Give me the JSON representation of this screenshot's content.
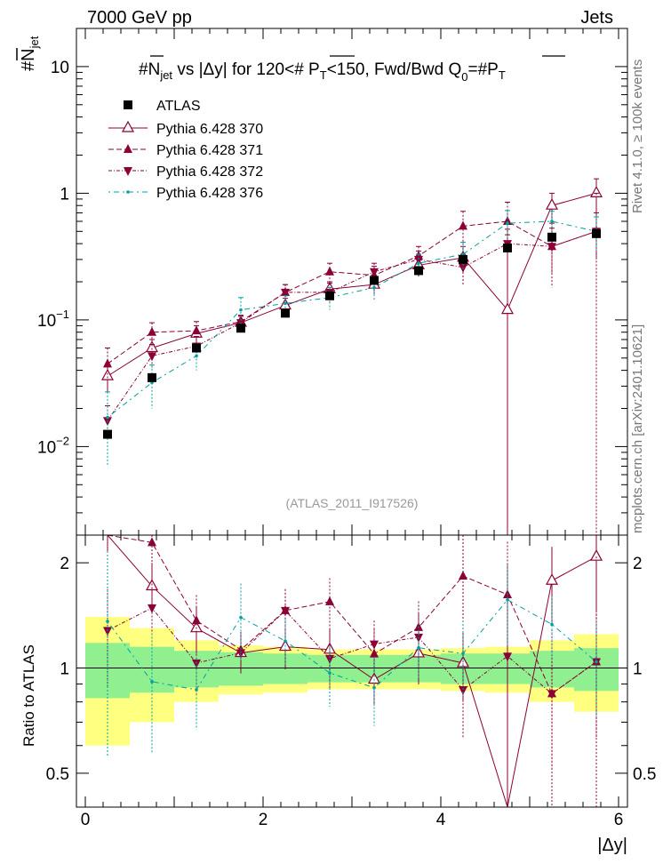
{
  "header": {
    "left": "7000 GeV pp",
    "right": "Jets"
  },
  "side_labels": {
    "rivet": "Rivet 4.1.0, ≥ 100k events",
    "mcplots": "mcplots.cern.ch [arXiv:2401.10621]"
  },
  "title": {
    "p1": "#",
    "p2": "N",
    "p3": "jet",
    "p4": " vs |Δy| for 120<# ",
    "p5": "P",
    "p6": "T",
    "p7": "<150, Fwd/Bwd Q",
    "p8": "0",
    "p9": "=#",
    "p10": "P",
    "p11": "T"
  },
  "watermark": "(ATLAS_2011_I917526)",
  "colors": {
    "data": "#000000",
    "mc": "#8b0036",
    "mc376": "#00a0a0",
    "band_inner": "#90f090",
    "band_outer": "#ffff80",
    "frame": "#000000"
  },
  "chart_data": {
    "type": "scatter",
    "xlabel": "|Δy|",
    "ylabel": {
      "main": "#",
      "bar": "N",
      "sub": "jet"
    },
    "ratio_ylabel": "Ratio to ATLAS",
    "xlim": [
      -0.1,
      6.1
    ],
    "ylim": [
      0.002,
      20
    ],
    "ratio_ylim": [
      0.4,
      2.4
    ],
    "x_ticks": [
      {
        "v": 0,
        "label": "0"
      },
      {
        "v": 2,
        "label": "2"
      },
      {
        "v": 4,
        "label": "4"
      },
      {
        "v": 6,
        "label": "6"
      }
    ],
    "y_ticks": [
      {
        "v": 0.01,
        "base": "10",
        "exp": "−2"
      },
      {
        "v": 0.1,
        "base": "10",
        "exp": "−1"
      },
      {
        "v": 1,
        "base": "1",
        "exp": ""
      },
      {
        "v": 10,
        "base": "10",
        "exp": ""
      }
    ],
    "ratio_ticks": [
      {
        "v": 0.5,
        "label": "0.5"
      },
      {
        "v": 1,
        "label": "1"
      },
      {
        "v": 2,
        "label": "2"
      }
    ],
    "x": [
      0.25,
      0.75,
      1.25,
      1.75,
      2.25,
      2.75,
      3.25,
      3.75,
      4.25,
      4.75,
      5.25,
      5.75
    ],
    "bin_edges": [
      0,
      0.5,
      1,
      1.5,
      2,
      2.5,
      3,
      3.5,
      4,
      4.5,
      5,
      5.5,
      6
    ],
    "band_inner": [
      0.18,
      0.15,
      0.12,
      0.11,
      0.1,
      0.09,
      0.09,
      0.09,
      0.1,
      0.1,
      0.12,
      0.14
    ],
    "band_outer": [
      0.4,
      0.3,
      0.2,
      0.16,
      0.15,
      0.13,
      0.13,
      0.13,
      0.14,
      0.15,
      0.2,
      0.25
    ],
    "data": {
      "name": "ATLAS",
      "values": [
        0.0125,
        0.035,
        0.06,
        0.086,
        0.113,
        0.155,
        0.205,
        0.245,
        0.3,
        0.37,
        0.45,
        0.48
      ]
    },
    "series": [
      {
        "name": "Pythia 6.428 370",
        "marker": "triangle-up-open",
        "dash": "",
        "values": [
          0.036,
          0.06,
          0.078,
          0.095,
          0.13,
          0.175,
          0.19,
          0.27,
          0.31,
          0.12,
          0.8,
          1.0
        ],
        "errors": [
          0.009,
          0.01,
          0.012,
          0.012,
          0.018,
          0.025,
          0.03,
          0.05,
          0.07,
          0.35,
          0.2,
          0.3
        ]
      },
      {
        "name": "Pythia 6.428 371",
        "marker": "triangle-up-filled",
        "dash": "6,3",
        "values": [
          0.045,
          0.08,
          0.082,
          0.097,
          0.165,
          0.24,
          0.225,
          0.32,
          0.55,
          0.6,
          0.38,
          0.5
        ],
        "errors": [
          0.015,
          0.015,
          0.015,
          0.012,
          0.025,
          0.04,
          0.04,
          0.06,
          0.17,
          0.25,
          0.15,
          0.2
        ]
      },
      {
        "name": "Pythia 6.428 372",
        "marker": "triangle-down-filled",
        "dash": "4,2,1,2",
        "values": [
          0.016,
          0.052,
          0.062,
          0.095,
          0.165,
          0.165,
          0.24,
          0.3,
          0.26,
          0.4,
          0.38,
          0.5
        ],
        "errors": [
          0.005,
          0.012,
          0.012,
          0.012,
          0.025,
          0.03,
          0.04,
          0.05,
          0.07,
          0.12,
          0.2,
          0.5
        ]
      },
      {
        "name": "Pythia 6.428 376",
        "marker": "dot",
        "dash": "2,4,6,4",
        "values": [
          0.017,
          0.032,
          0.052,
          0.12,
          0.135,
          0.15,
          0.18,
          0.28,
          0.33,
          0.58,
          0.6,
          0.5
        ],
        "errors": [
          0.01,
          0.012,
          0.012,
          0.03,
          0.02,
          0.03,
          0.04,
          0.05,
          0.08,
          0.15,
          0.12,
          0.15
        ]
      }
    ]
  }
}
